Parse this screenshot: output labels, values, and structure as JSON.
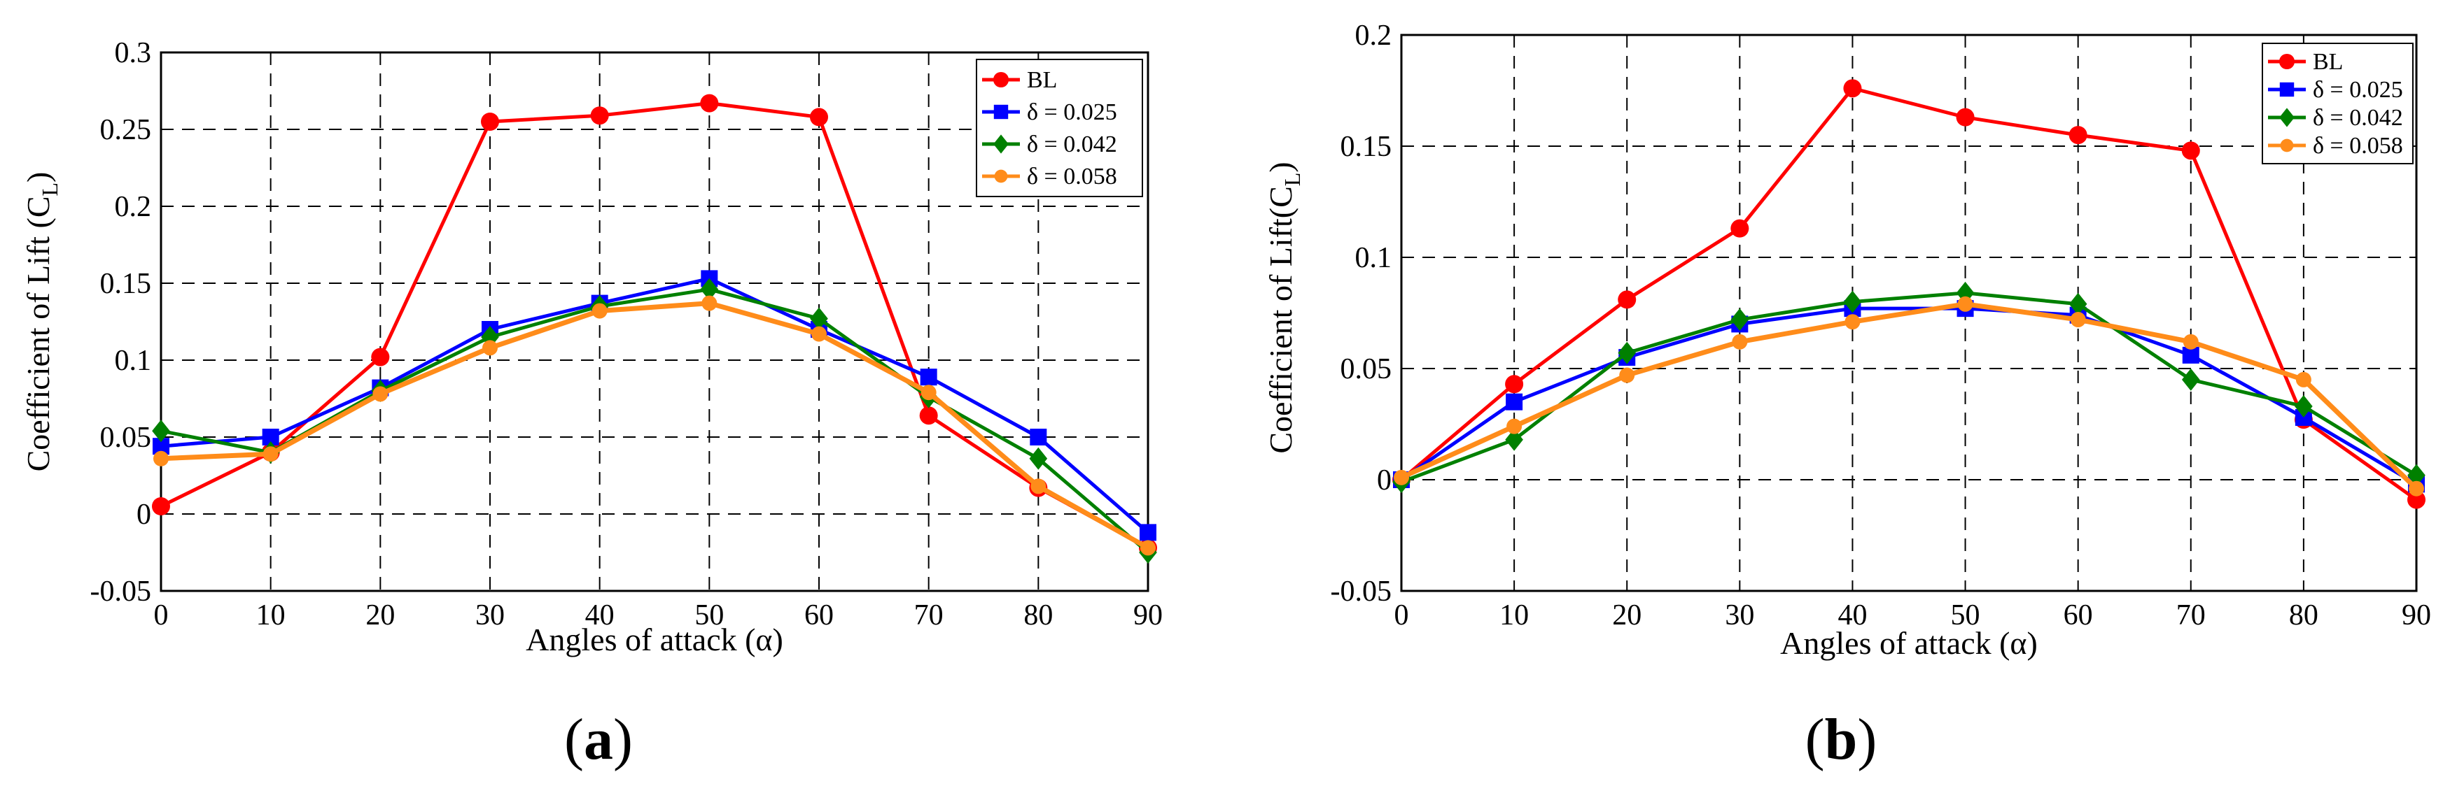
{
  "chart_data": [
    {
      "type": "line",
      "panel_label": "a",
      "xlabel": "Angles of attack (α)",
      "ylabel": "Coefficient of Lift (C",
      "ylabel_sub": "L",
      "ylabel_close": ")",
      "xlim": [
        0,
        90
      ],
      "ylim": [
        -0.05,
        0.3
      ],
      "x_ticks": [
        0,
        10,
        20,
        30,
        40,
        50,
        60,
        70,
        80,
        90
      ],
      "y_ticks": [
        -0.05,
        0,
        0.05,
        0.1,
        0.15,
        0.2,
        0.25,
        0.3
      ],
      "y_tick_labels": [
        "-0.05",
        "0",
        "0.05",
        "0.1",
        "0.15",
        "0.2",
        "0.25",
        "0.3"
      ],
      "x": [
        0,
        10,
        20,
        30,
        40,
        50,
        60,
        70,
        80,
        90
      ],
      "grid": true,
      "legend_position": "top-right",
      "series": [
        {
          "name": "BL",
          "color": "#ff0000",
          "marker": "circle",
          "values": [
            0.005,
            0.04,
            0.102,
            0.255,
            0.259,
            0.267,
            0.258,
            0.064,
            0.017,
            -0.022
          ]
        },
        {
          "name": "δ = 0.025",
          "color": "#0000ff",
          "marker": "square",
          "values": [
            0.044,
            0.05,
            0.082,
            0.12,
            0.137,
            0.153,
            0.12,
            0.089,
            0.05,
            -0.012
          ]
        },
        {
          "name": "δ = 0.042",
          "color": "#008000",
          "marker": "diamond",
          "values": [
            0.054,
            0.04,
            0.08,
            0.115,
            0.135,
            0.146,
            0.127,
            0.076,
            0.036,
            -0.025
          ]
        },
        {
          "name": "δ = 0.058",
          "color": "#ff8c1a",
          "marker": "circle-small",
          "values": [
            0.036,
            0.039,
            0.078,
            0.108,
            0.132,
            0.137,
            0.117,
            0.079,
            0.018,
            -0.022
          ]
        }
      ]
    },
    {
      "type": "line",
      "panel_label": "b",
      "xlabel": "Angles of attack (α)",
      "ylabel": "Coefficient of Lift(C",
      "ylabel_sub": "L",
      "ylabel_close": ")",
      "xlim": [
        0,
        90
      ],
      "ylim": [
        -0.05,
        0.2
      ],
      "x_ticks": [
        0,
        10,
        20,
        30,
        40,
        50,
        60,
        70,
        80,
        90
      ],
      "y_ticks": [
        -0.05,
        0,
        0.05,
        0.1,
        0.15,
        0.2
      ],
      "y_tick_labels": [
        "-0.05",
        "0",
        "0.05",
        "0.1",
        "0.15",
        "0.2"
      ],
      "x": [
        0,
        10,
        20,
        30,
        40,
        50,
        60,
        70,
        80,
        90
      ],
      "grid": true,
      "legend_position": "top-right",
      "series": [
        {
          "name": "BL",
          "color": "#ff0000",
          "marker": "circle",
          "values": [
            0.0,
            0.043,
            0.081,
            0.113,
            0.176,
            0.163,
            0.155,
            0.148,
            0.027,
            -0.009
          ]
        },
        {
          "name": "δ = 0.025",
          "color": "#0000ff",
          "marker": "square",
          "values": [
            0.0,
            0.035,
            0.055,
            0.07,
            0.077,
            0.077,
            0.074,
            0.056,
            0.028,
            -0.002
          ]
        },
        {
          "name": "δ = 0.042",
          "color": "#008000",
          "marker": "diamond",
          "values": [
            -0.001,
            0.018,
            0.057,
            0.072,
            0.08,
            0.084,
            0.079,
            0.045,
            0.033,
            0.002
          ]
        },
        {
          "name": "δ = 0.058",
          "color": "#ff8c1a",
          "marker": "circle-small",
          "values": [
            0.001,
            0.024,
            0.047,
            0.062,
            0.071,
            0.079,
            0.072,
            0.062,
            0.045,
            -0.004
          ]
        }
      ]
    }
  ]
}
